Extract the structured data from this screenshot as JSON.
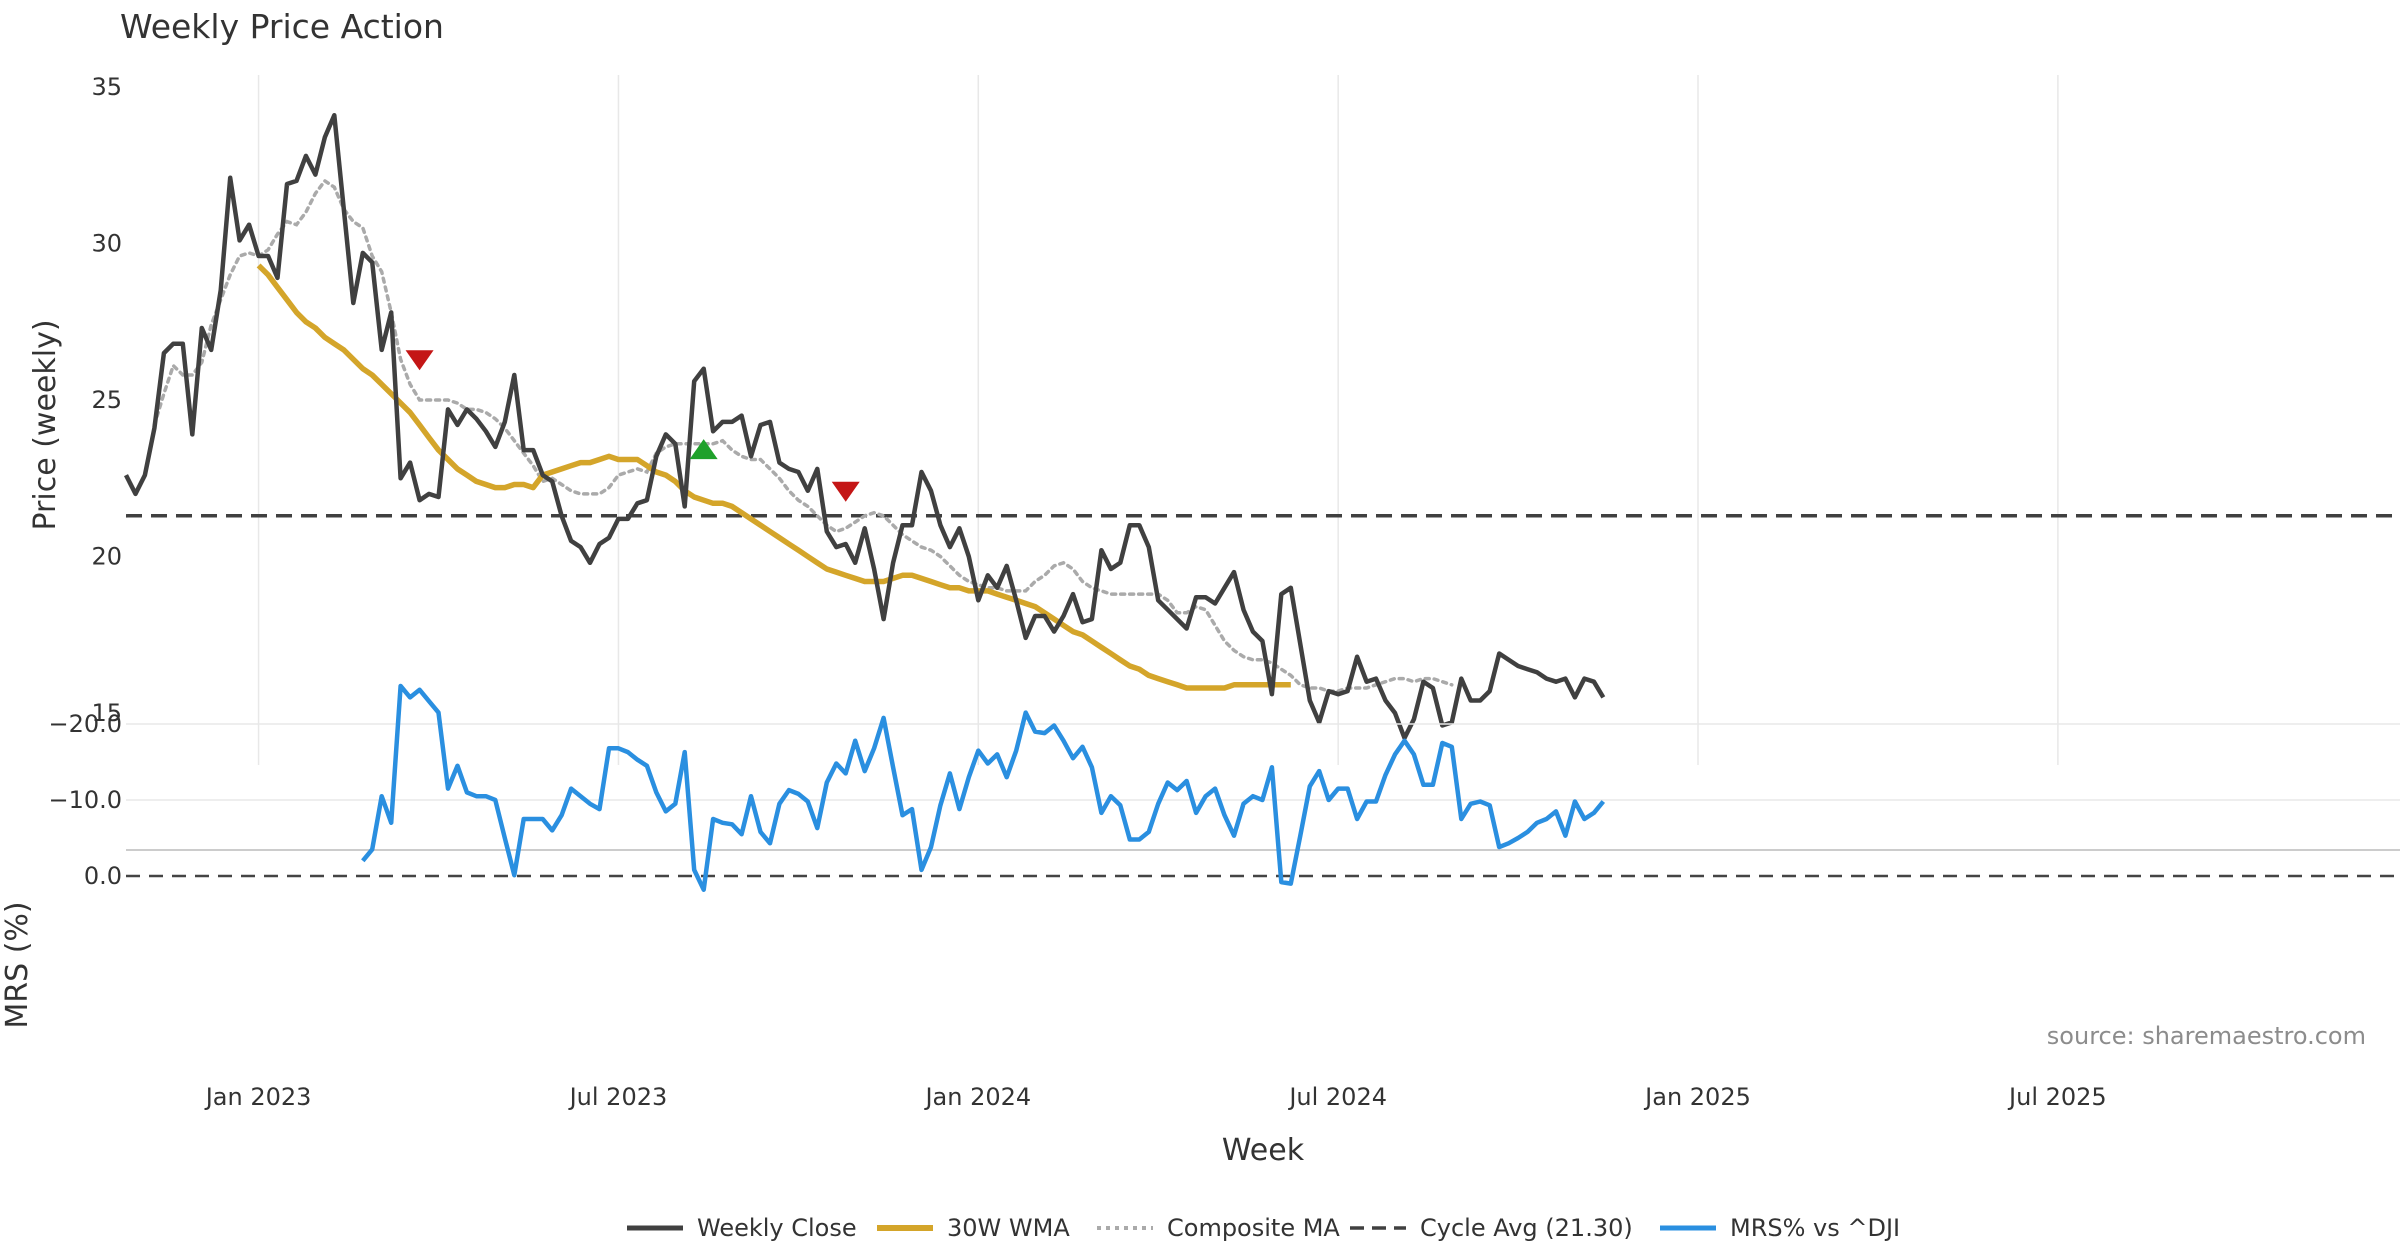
{
  "chart_data": {
    "type": "line",
    "title": "Weekly Price Action",
    "source": "source: sharemaestro.com",
    "xlabel": "Week",
    "x_ticks": [
      "Jan 2023",
      "Jul 2023",
      "Jan 2024",
      "Jul 2024",
      "Jan 2025",
      "Jul 2025"
    ],
    "price_panel": {
      "ylabel": "Price (weekly)",
      "ylim": [
        13,
        35
      ],
      "yticks": [
        "15",
        "20",
        "25",
        "30",
        "35"
      ],
      "grid": "vertical"
    },
    "mrs_panel": {
      "ylabel": "MRS (%)",
      "ylim": [
        -27,
        3
      ],
      "yticks": [
        "0.0",
        "−10.0",
        "−20.0"
      ],
      "zero_line": 0
    },
    "legend": [
      {
        "key": "close",
        "label": "Weekly Close"
      },
      {
        "key": "wma",
        "label": "30W WMA"
      },
      {
        "key": "composite",
        "label": "Composite MA"
      },
      {
        "key": "cycle",
        "label": "Cycle Avg (21.30)"
      },
      {
        "key": "mrs",
        "label": "MRS% vs ^DJI"
      }
    ],
    "colors": {
      "close": "#404040",
      "wma": "#D4A52A",
      "composite": "#AAAAAA",
      "cycle": "#404040",
      "mrs": "#2A8FE0",
      "signal_up": "#1FA12B",
      "signal_down": "#C41616",
      "grid": "#E8E8E8"
    },
    "cycle_avg": 21.3,
    "series": {
      "close": [
        22.6,
        22.0,
        22.6,
        24.1,
        26.5,
        26.8,
        26.8,
        23.9,
        27.3,
        26.6,
        28.5,
        32.1,
        30.1,
        30.6,
        29.6,
        29.6,
        28.9,
        31.9,
        32.0,
        32.8,
        32.2,
        33.4,
        34.1,
        31.1,
        28.1,
        29.7,
        29.4,
        26.6,
        27.8,
        22.5,
        23.0,
        21.8,
        22.0,
        21.9,
        24.7,
        24.2,
        24.7,
        24.4,
        24.0,
        23.5,
        24.3,
        25.8,
        23.4,
        23.4,
        22.6,
        22.4,
        21.3,
        20.5,
        20.3,
        19.8,
        20.4,
        20.6,
        21.2,
        21.2,
        21.7,
        21.8,
        23.2,
        23.9,
        23.6,
        21.6,
        25.6,
        26.0,
        24.0,
        24.3,
        24.3,
        24.5,
        23.2,
        24.2,
        24.3,
        23.0,
        22.8,
        22.7,
        22.1,
        22.8,
        20.8,
        20.3,
        20.4,
        19.8,
        20.9,
        19.6,
        18.0,
        19.8,
        21.0,
        21.0,
        22.7,
        22.1,
        21.0,
        20.3,
        20.9,
        20.0,
        18.6,
        19.4,
        19.0,
        19.7,
        18.6,
        17.4,
        18.1,
        18.1,
        17.6,
        18.1,
        18.8,
        17.9,
        18.0,
        20.2,
        19.6,
        19.8,
        21.0,
        21.0,
        20.3,
        18.6,
        18.3,
        18.0,
        17.7,
        18.7,
        18.7,
        18.5,
        19.0,
        19.5,
        18.3,
        17.6,
        17.3,
        15.6,
        18.8,
        19.0,
        17.2,
        15.4,
        14.7,
        15.7,
        15.6,
        15.7,
        16.8,
        16.0,
        16.1,
        15.4,
        15.0,
        14.2,
        14.8,
        16.0,
        15.8,
        14.6,
        14.7,
        16.1,
        15.4,
        15.4,
        15.7,
        16.9,
        16.7,
        16.5,
        16.4,
        16.3,
        16.1,
        16.0,
        16.1,
        15.5,
        16.1,
        16.0,
        15.5
      ],
      "wma_start": 14,
      "wma": [
        29.3,
        29.0,
        28.6,
        28.2,
        27.8,
        27.5,
        27.3,
        27.0,
        26.8,
        26.6,
        26.3,
        26.0,
        25.8,
        25.5,
        25.2,
        24.9,
        24.6,
        24.2,
        23.8,
        23.4,
        23.1,
        22.8,
        22.6,
        22.4,
        22.3,
        22.2,
        22.2,
        22.3,
        22.3,
        22.2,
        22.6,
        22.7,
        22.8,
        22.9,
        23.0,
        23.0,
        23.1,
        23.2,
        23.1,
        23.1,
        23.1,
        22.9,
        22.7,
        22.6,
        22.4,
        22.1,
        21.9,
        21.8,
        21.7,
        21.7,
        21.6,
        21.4,
        21.2,
        21.0,
        20.8,
        20.6,
        20.4,
        20.2,
        20.0,
        19.8,
        19.6,
        19.5,
        19.4,
        19.3,
        19.2,
        19.2,
        19.2,
        19.3,
        19.4,
        19.4,
        19.3,
        19.2,
        19.1,
        19.0,
        19.0,
        18.9,
        18.9,
        18.9,
        18.8,
        18.7,
        18.6,
        18.5,
        18.4,
        18.2,
        18.0,
        17.8,
        17.6,
        17.5,
        17.3,
        17.1,
        16.9,
        16.7,
        16.5,
        16.4,
        16.2,
        16.1,
        16.0,
        15.9,
        15.8,
        15.8,
        15.8,
        15.8,
        15.8,
        15.9,
        15.9,
        15.9,
        15.9,
        15.9,
        15.9,
        15.9
      ],
      "composite_start": 3,
      "composite": [
        24.2,
        25.2,
        26.1,
        25.8,
        25.8,
        26.2,
        27.4,
        28.2,
        29.0,
        29.6,
        29.7,
        29.6,
        29.8,
        30.3,
        30.7,
        30.6,
        31.0,
        31.6,
        32.0,
        31.8,
        31.1,
        30.7,
        30.5,
        29.6,
        29.1,
        27.8,
        26.3,
        25.5,
        25.0,
        25.0,
        25.0,
        25.0,
        24.9,
        24.7,
        24.7,
        24.6,
        24.4,
        24.1,
        23.7,
        23.3,
        22.9,
        22.4,
        22.5,
        22.3,
        22.1,
        22.0,
        22.0,
        22.0,
        22.2,
        22.6,
        22.7,
        22.8,
        22.7,
        23.3,
        23.5,
        23.6,
        23.6,
        23.6,
        23.6,
        23.6,
        23.7,
        23.4,
        23.2,
        23.1,
        23.1,
        22.8,
        22.5,
        22.1,
        21.8,
        21.6,
        21.3,
        21.0,
        20.8,
        20.9,
        21.1,
        21.3,
        21.4,
        21.3,
        21.0,
        20.7,
        20.5,
        20.3,
        20.2,
        20.0,
        19.7,
        19.4,
        19.2,
        19.1,
        19.0,
        19.0,
        18.9,
        18.9,
        18.9,
        19.2,
        19.4,
        19.7,
        19.8,
        19.6,
        19.2,
        19.0,
        18.9,
        18.8,
        18.8,
        18.8,
        18.8,
        18.8,
        18.8,
        18.6,
        18.2,
        18.2,
        18.4,
        18.3,
        17.8,
        17.3,
        17.0,
        16.8,
        16.7,
        16.7,
        16.6,
        16.4,
        16.2,
        15.9,
        15.8,
        15.8,
        15.7,
        15.7,
        15.8,
        15.8,
        15.8,
        15.9,
        16.0,
        16.1,
        16.1,
        16.0,
        16.1,
        16.1,
        16.0,
        15.9
      ],
      "mrs_start": 25,
      "mrs": [
        -2.0,
        -3.5,
        -10.5,
        -7.0,
        -25.0,
        -23.5,
        -24.5,
        -23.0,
        -21.5,
        -11.5,
        -14.5,
        -11.0,
        -10.5,
        -10.5,
        -10.0,
        -5.0,
        -0.1,
        -7.5,
        -7.5,
        -7.5,
        -6.0,
        -8.0,
        -11.5,
        -10.5,
        -9.5,
        -8.8,
        -16.8,
        -16.8,
        -16.3,
        -15.3,
        -14.5,
        -11.0,
        -8.5,
        -9.5,
        -16.3,
        -0.8,
        1.8,
        -7.5,
        -7.0,
        -6.8,
        -5.5,
        -10.5,
        -5.8,
        -4.3,
        -9.5,
        -11.3,
        -10.8,
        -9.8,
        -6.3,
        -12.3,
        -14.8,
        -13.5,
        -17.8,
        -13.8,
        -16.8,
        -20.8,
        -14.3,
        -8.0,
        -8.8,
        -0.8,
        -3.8,
        -9.3,
        -13.5,
        -8.8,
        -13.0,
        -16.5,
        -14.8,
        -16.0,
        -13.0,
        -16.5,
        -21.5,
        -19.0,
        -18.8,
        -19.8,
        -17.8,
        -15.5,
        -17.0,
        -14.3,
        -8.3,
        -10.5,
        -9.3,
        -4.8,
        -4.8,
        -5.8,
        -9.5,
        -12.3,
        -11.3,
        -12.5,
        -8.3,
        -10.5,
        -11.5,
        -8.0,
        -5.3,
        -9.5,
        -10.5,
        -10.0,
        -14.3,
        0.8,
        1.0,
        -5.3,
        -11.8,
        -13.8,
        -10.0,
        -11.5,
        -11.5,
        -7.5,
        -9.8,
        -9.8,
        -13.3,
        -16.0,
        -17.8,
        -16.0,
        -12.0,
        -12.0,
        -17.5,
        -17.0,
        -7.5,
        -9.5,
        -9.8,
        -9.3,
        -3.8,
        -4.3,
        -5.0,
        -5.8,
        -7.0,
        -7.5,
        -8.5,
        -5.3,
        -9.8,
        -7.5,
        -8.3,
        -9.8
      ]
    },
    "signals": [
      {
        "type": "sell",
        "index": 31,
        "value": 26.3
      },
      {
        "type": "buy",
        "index": 61,
        "value": 23.4
      },
      {
        "type": "sell",
        "index": 76,
        "value": 22.1
      }
    ]
  }
}
